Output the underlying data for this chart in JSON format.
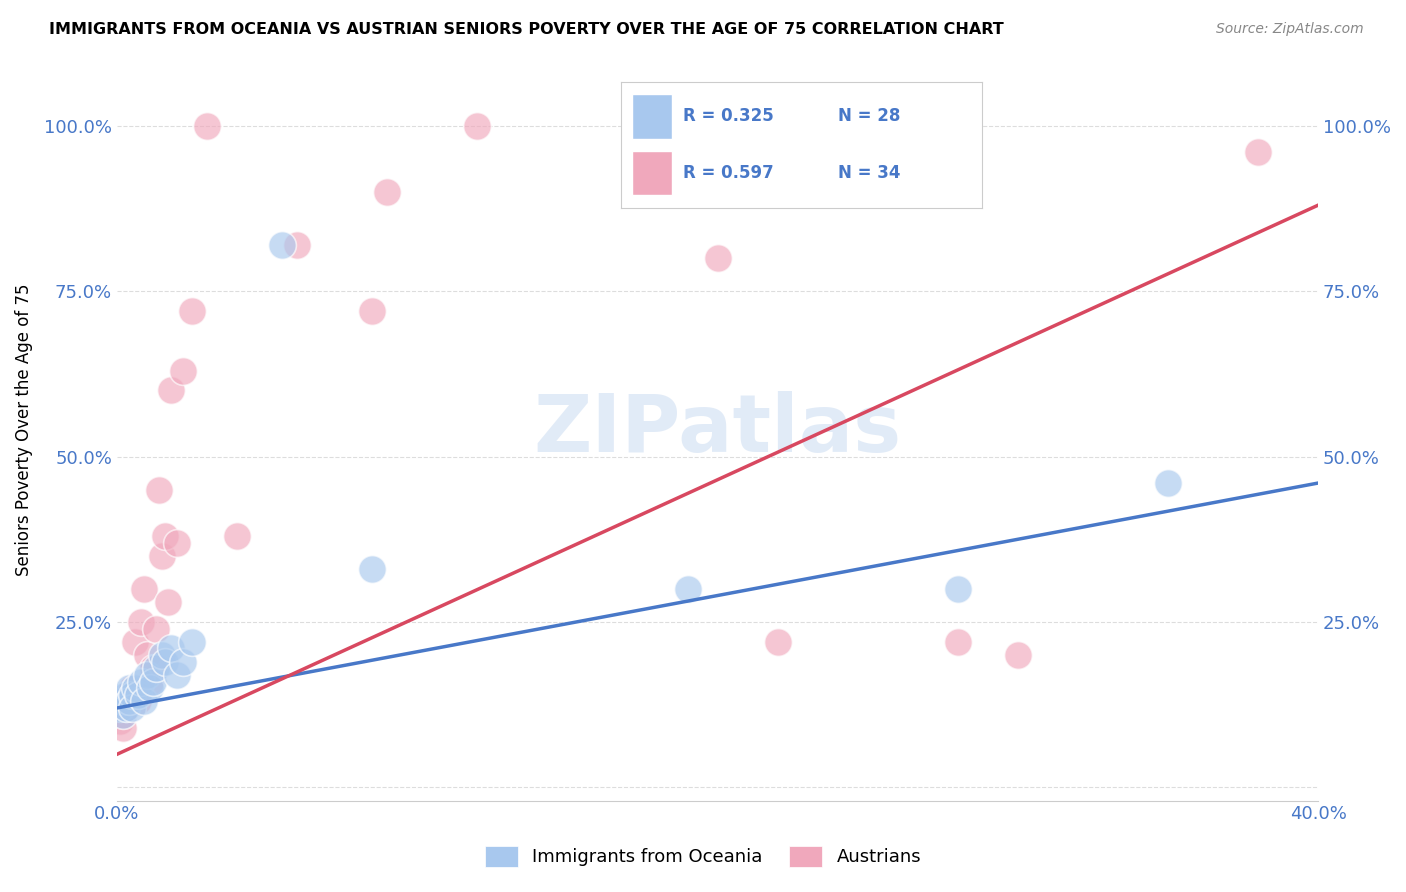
{
  "title": "IMMIGRANTS FROM OCEANIA VS AUSTRIAN SENIORS POVERTY OVER THE AGE OF 75 CORRELATION CHART",
  "source": "Source: ZipAtlas.com",
  "ylabel": "Seniors Poverty Over the Age of 75",
  "xlim": [
    0.0,
    0.4
  ],
  "ylim": [
    -0.02,
    1.1
  ],
  "yticks": [
    0.0,
    0.25,
    0.5,
    0.75,
    1.0
  ],
  "xticks": [
    0.0,
    0.1,
    0.2,
    0.3,
    0.4
  ],
  "xtick_labels": [
    "0.0%",
    "",
    "",
    "",
    "40.0%"
  ],
  "ytick_labels_left": [
    "",
    "25.0%",
    "50.0%",
    "75.0%",
    "100.0%"
  ],
  "ytick_labels_right": [
    "",
    "25.0%",
    "50.0%",
    "75.0%",
    "100.0%"
  ],
  "blue_color": "#A8C8EE",
  "pink_color": "#F0A8BC",
  "blue_line_color": "#4878C8",
  "pink_line_color": "#D84860",
  "tick_color": "#4878C8",
  "watermark": "ZIPatlas",
  "blue_R": "0.325",
  "blue_N": "28",
  "pink_R": "0.597",
  "pink_N": "34",
  "blue_label": "Immigrants from Oceania",
  "pink_label": "Austrians",
  "blue_scatter_x": [
    0.001,
    0.002,
    0.002,
    0.003,
    0.003,
    0.004,
    0.004,
    0.005,
    0.005,
    0.006,
    0.007,
    0.008,
    0.009,
    0.01,
    0.011,
    0.012,
    0.013,
    0.015,
    0.016,
    0.018,
    0.02,
    0.022,
    0.025,
    0.055,
    0.085,
    0.19,
    0.28,
    0.35
  ],
  "blue_scatter_y": [
    0.12,
    0.13,
    0.11,
    0.14,
    0.12,
    0.15,
    0.13,
    0.14,
    0.12,
    0.15,
    0.14,
    0.16,
    0.13,
    0.17,
    0.15,
    0.16,
    0.18,
    0.2,
    0.19,
    0.21,
    0.17,
    0.19,
    0.22,
    0.82,
    0.33,
    0.3,
    0.3,
    0.46
  ],
  "pink_scatter_x": [
    0.001,
    0.002,
    0.002,
    0.003,
    0.003,
    0.004,
    0.005,
    0.006,
    0.007,
    0.008,
    0.009,
    0.01,
    0.011,
    0.012,
    0.013,
    0.014,
    0.015,
    0.016,
    0.017,
    0.018,
    0.02,
    0.022,
    0.025,
    0.03,
    0.04,
    0.06,
    0.085,
    0.09,
    0.12,
    0.2,
    0.22,
    0.28,
    0.3,
    0.38
  ],
  "pink_scatter_y": [
    0.1,
    0.11,
    0.09,
    0.12,
    0.13,
    0.14,
    0.15,
    0.22,
    0.13,
    0.25,
    0.3,
    0.2,
    0.16,
    0.18,
    0.24,
    0.45,
    0.35,
    0.38,
    0.28,
    0.6,
    0.37,
    0.63,
    0.72,
    1.0,
    0.38,
    0.82,
    0.72,
    0.9,
    1.0,
    0.8,
    0.22,
    0.22,
    0.2,
    0.96
  ],
  "blue_line_x": [
    0.0,
    0.4
  ],
  "blue_line_y": [
    0.12,
    0.46
  ],
  "pink_line_x": [
    0.0,
    0.4
  ],
  "pink_line_y": [
    0.05,
    0.88
  ],
  "background_color": "#FFFFFF",
  "grid_color": "#DDDDDD"
}
